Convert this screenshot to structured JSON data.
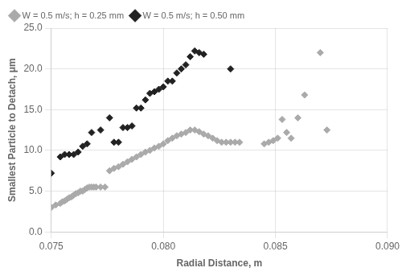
{
  "chart_data": {
    "type": "scatter",
    "xlabel": "Radial Distance, m",
    "ylabel": "Smallest Particle to Detach, μm",
    "xlim": [
      0.075,
      0.09
    ],
    "ylim": [
      0.0,
      25.0
    ],
    "xticks": [
      0.075,
      {
        "value": 0.08,
        "label": "0.080"
      },
      0.085,
      {
        "value": 0.09,
        "label": "0.090"
      }
    ],
    "yticks": [
      {
        "value": 0.0,
        "label": "0.0"
      },
      {
        "value": 5.0,
        "label": "5.0"
      },
      {
        "value": 10.0,
        "label": "10.0"
      },
      {
        "value": 15.0,
        "label": "15.0"
      },
      {
        "value": 20.0,
        "label": "20.0"
      },
      {
        "value": 25.0,
        "label": "25.0"
      }
    ],
    "grid": true,
    "legend": "upper left",
    "marker": "diamond",
    "series": [
      {
        "name": "W = 0.5 m/s; h = 0.25 mm",
        "color": "#aaaaaa",
        "x": [
          0.075,
          0.0752,
          0.0754,
          0.0755,
          0.0756,
          0.0757,
          0.0758,
          0.0759,
          0.076,
          0.0761,
          0.0762,
          0.0763,
          0.0764,
          0.0765,
          0.0766,
          0.0767,
          0.0768,
          0.0769,
          0.077,
          0.0772,
          0.0774,
          0.0776,
          0.0778,
          0.078,
          0.0782,
          0.0784,
          0.0786,
          0.0788,
          0.079,
          0.0792,
          0.0794,
          0.0796,
          0.0798,
          0.08,
          0.0802,
          0.0804,
          0.0806,
          0.0808,
          0.081,
          0.0812,
          0.0814,
          0.0816,
          0.0818,
          0.082,
          0.0822,
          0.0824,
          0.0826,
          0.0828,
          0.083,
          0.0832,
          0.0834,
          0.0845,
          0.0847,
          0.0849,
          0.0851,
          0.0853,
          0.0855,
          0.0857,
          0.086,
          0.0863,
          0.087,
          0.0873
        ],
        "values": [
          3.0,
          3.3,
          3.5,
          3.7,
          3.8,
          4.0,
          4.2,
          4.3,
          4.5,
          4.7,
          4.8,
          5.0,
          5.0,
          5.2,
          5.4,
          5.5,
          5.5,
          5.5,
          5.5,
          5.5,
          5.5,
          7.5,
          7.8,
          8.0,
          8.3,
          8.6,
          8.9,
          9.2,
          9.5,
          9.8,
          10.0,
          10.3,
          10.5,
          10.8,
          11.2,
          11.5,
          11.8,
          12.0,
          12.2,
          12.5,
          12.5,
          12.3,
          12.0,
          11.8,
          11.5,
          11.2,
          11.0,
          11.0,
          11.0,
          11.0,
          11.0,
          10.8,
          11.0,
          11.2,
          11.5,
          13.8,
          12.2,
          11.5,
          14.0,
          16.8,
          22.0,
          12.5
        ]
      },
      {
        "name": "W = 0.5 m/s; h = 0.50 mm",
        "color": "#222222",
        "x": [
          0.075,
          0.0754,
          0.0756,
          0.0758,
          0.076,
          0.0762,
          0.0764,
          0.0766,
          0.0768,
          0.0772,
          0.0776,
          0.0778,
          0.078,
          0.0782,
          0.0784,
          0.0786,
          0.0788,
          0.079,
          0.0792,
          0.0794,
          0.0796,
          0.0798,
          0.08,
          0.0802,
          0.0804,
          0.0806,
          0.0808,
          0.081,
          0.0812,
          0.0814,
          0.0816,
          0.0818,
          0.083
        ],
        "values": [
          7.2,
          9.2,
          9.5,
          9.5,
          9.5,
          9.8,
          10.5,
          10.8,
          12.2,
          12.5,
          14.0,
          11.0,
          11.0,
          12.8,
          12.8,
          13.0,
          15.2,
          15.2,
          16.2,
          17.0,
          17.2,
          17.5,
          17.8,
          18.5,
          18.5,
          19.5,
          20.0,
          20.5,
          21.5,
          22.2,
          22.0,
          21.8,
          20.0
        ]
      }
    ]
  }
}
